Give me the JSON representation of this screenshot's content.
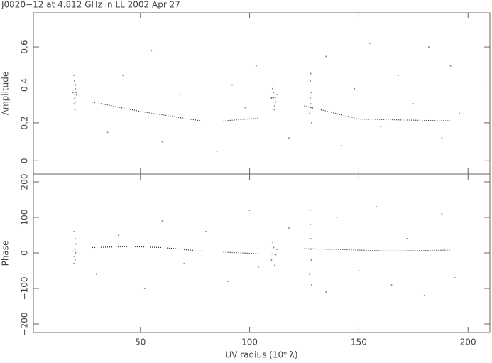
{
  "chart_data": [
    {
      "type": "scatter",
      "title": "J0820−12 at 4.812 GHz in LL  2002 Apr 27",
      "ylabel": "Amplitude",
      "xlim": [
        1,
        210
      ],
      "ylim": [
        -0.07,
        0.78
      ],
      "yticks": [
        0,
        0.2,
        0.4,
        0.6
      ],
      "series": [
        {
          "color": "#888888",
          "marker": "dot",
          "x": [
            19.5,
            20,
            20.2,
            19.8,
            20.5,
            20.1,
            19.6,
            20.3,
            19.9,
            20.4,
            110,
            111,
            112,
            110.5,
            111.5,
            112.5,
            110.8,
            111.2,
            127.5,
            128,
            128.2,
            127.8,
            128.4,
            128,
            127.7,
            128.3,
            35,
            42,
            55,
            60,
            68,
            75,
            85,
            92,
            98,
            103,
            118,
            135,
            142,
            148,
            155,
            160,
            168,
            175,
            182,
            188,
            192,
            196
          ],
          "values": [
            0.3,
            0.33,
            0.38,
            0.42,
            0.36,
            0.27,
            0.45,
            0.31,
            0.35,
            0.4,
            0.33,
            0.36,
            0.31,
            0.38,
            0.29,
            0.35,
            0.4,
            0.27,
            0.25,
            0.3,
            0.36,
            0.42,
            0.2,
            0.46,
            0.33,
            0.28,
            0.15,
            0.45,
            0.58,
            0.1,
            0.35,
            0.22,
            0.05,
            0.4,
            0.28,
            0.5,
            0.12,
            0.55,
            0.08,
            0.38,
            0.62,
            0.18,
            0.45,
            0.3,
            0.6,
            0.12,
            0.5,
            0.25
          ]
        },
        {
          "color": "#222222",
          "marker": "line",
          "x": [
            19,
            21,
            null,
            28,
            50,
            78,
            null,
            88,
            104,
            null,
            110,
            112,
            null,
            125,
            150,
            170,
            192
          ],
          "values": [
            0.36,
            0.345,
            null,
            0.31,
            0.26,
            0.21,
            null,
            0.21,
            0.225,
            null,
            0.335,
            0.33,
            null,
            0.29,
            0.22,
            0.215,
            0.21
          ]
        }
      ]
    },
    {
      "type": "scatter",
      "ylabel": "Phase",
      "xlabel": "UV radius  (10⁶ λ)",
      "xlim": [
        1,
        210
      ],
      "xticks": [
        50,
        100,
        150,
        200
      ],
      "ylim": [
        -224,
        222
      ],
      "yticks": [
        {
          "value": -200,
          "label": "−200"
        },
        {
          "value": -100,
          "label": "−100"
        },
        0,
        100,
        200
      ],
      "series": [
        {
          "color": "#888888",
          "marker": "dot",
          "x": [
            19.5,
            20,
            20.2,
            19.8,
            20.5,
            20.1,
            19.6,
            20.3,
            110,
            111,
            112,
            110.5,
            111.5,
            112.5,
            127.5,
            128,
            128.2,
            127.8,
            128.4,
            128,
            127.7,
            30,
            40,
            52,
            60,
            70,
            80,
            90,
            100,
            104,
            118,
            135,
            140,
            150,
            158,
            165,
            172,
            180,
            188,
            194
          ],
          "values": [
            -30,
            10,
            40,
            -10,
            25,
            -20,
            60,
            0,
            -20,
            15,
            -5,
            30,
            -35,
            10,
            -60,
            40,
            -20,
            80,
            -90,
            10,
            120,
            -60,
            50,
            -100,
            90,
            -30,
            60,
            -80,
            120,
            -40,
            70,
            -110,
            100,
            -50,
            130,
            -90,
            40,
            -120,
            110,
            -70
          ]
        },
        {
          "color": "#222222",
          "marker": "line",
          "x": [
            19,
            21,
            null,
            28,
            45,
            60,
            78,
            null,
            88,
            104,
            null,
            110,
            112,
            null,
            125,
            150,
            165,
            192
          ],
          "values": [
            5,
            5,
            null,
            15,
            18,
            15,
            5,
            null,
            2,
            -2,
            null,
            -3,
            -3,
            null,
            12,
            8,
            5,
            8
          ]
        }
      ]
    }
  ]
}
